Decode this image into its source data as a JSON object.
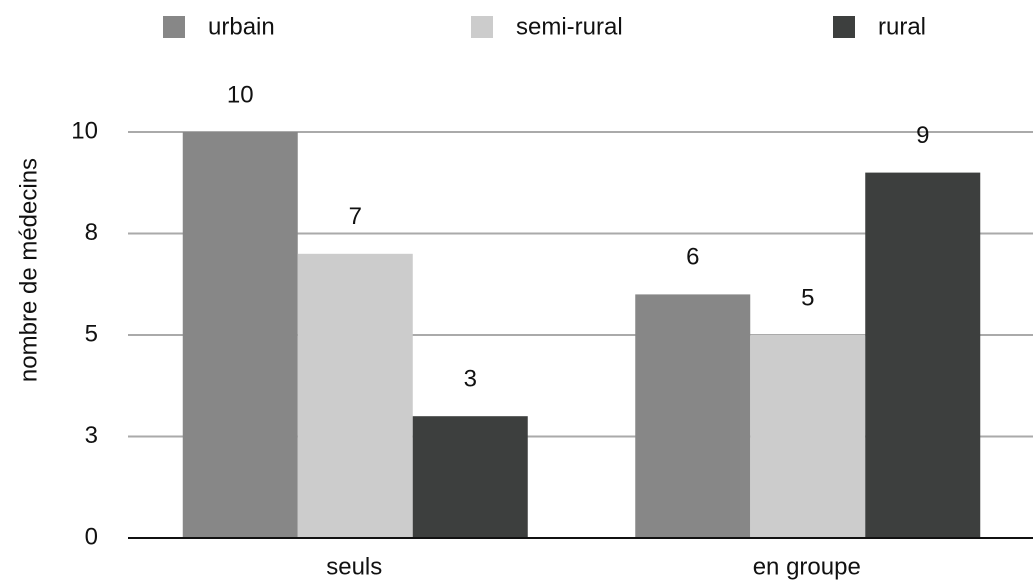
{
  "chart_data": {
    "type": "bar",
    "y_label": "nombre de médecins",
    "categories": [
      "seuls",
      "en groupe"
    ],
    "series": [
      {
        "name": "urbain",
        "color": "#878787",
        "values": [
          10,
          6
        ]
      },
      {
        "name": "semi-rural",
        "color": "#cccccc",
        "values": [
          7,
          5
        ]
      },
      {
        "name": "rural",
        "color": "#3d3f3e",
        "values": [
          3,
          9
        ]
      }
    ],
    "ylim": [
      0,
      10
    ],
    "yticks": [
      0,
      {
        "value": 2.5,
        "label": "3"
      },
      5,
      {
        "value": 7.5,
        "label": "8"
      },
      10
    ],
    "grid": true
  }
}
